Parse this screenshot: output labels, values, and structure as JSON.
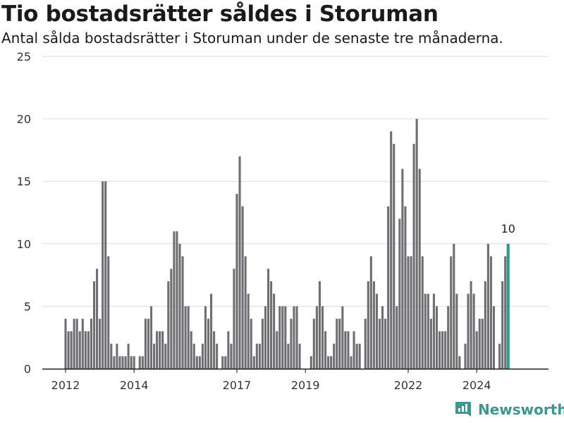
{
  "chart_data": {
    "type": "bar",
    "title": "Tio bostadsrätter såldes i Storuman",
    "subtitle": "Antal sålda bostadsrätter i Storuman under de senaste tre månaderna.",
    "xlabel": "",
    "ylabel": "",
    "ylim": [
      0,
      25
    ],
    "yticks": [
      0,
      5,
      10,
      15,
      20,
      25
    ],
    "xticks": [
      "2012",
      "2014",
      "2017",
      "2019",
      "2022",
      "2024"
    ],
    "grid": true,
    "bar_color": "#6f6e73",
    "highlight_color": "#2a9d8f",
    "highlight_label": "10",
    "values": [
      4,
      3,
      3,
      4,
      4,
      3,
      4,
      3,
      3,
      4,
      7,
      8,
      4,
      15,
      15,
      9,
      2,
      1,
      2,
      1,
      1,
      1,
      2,
      1,
      1,
      0,
      1,
      1,
      4,
      4,
      5,
      2,
      3,
      3,
      3,
      2,
      7,
      8,
      11,
      11,
      10,
      9,
      5,
      5,
      3,
      2,
      1,
      1,
      2,
      5,
      4,
      6,
      3,
      2,
      0,
      1,
      1,
      3,
      2,
      8,
      14,
      17,
      13,
      9,
      6,
      4,
      1,
      2,
      2,
      4,
      5,
      8,
      7,
      6,
      3,
      5,
      5,
      5,
      2,
      4,
      5,
      5,
      2,
      0,
      0,
      0,
      1,
      4,
      5,
      7,
      5,
      3,
      1,
      1,
      2,
      4,
      4,
      5,
      3,
      3,
      1,
      3,
      2,
      2,
      0,
      4,
      7,
      9,
      7,
      6,
      4,
      5,
      4,
      13,
      19,
      18,
      5,
      12,
      16,
      13,
      9,
      9,
      18,
      20,
      16,
      9,
      6,
      6,
      4,
      6,
      5,
      3,
      3,
      3,
      5,
      9,
      10,
      6,
      1,
      0,
      2,
      6,
      7,
      6,
      3,
      4,
      4,
      7,
      10,
      9,
      5,
      0,
      2,
      7,
      9,
      10
    ],
    "brand": "Newsworthy"
  }
}
